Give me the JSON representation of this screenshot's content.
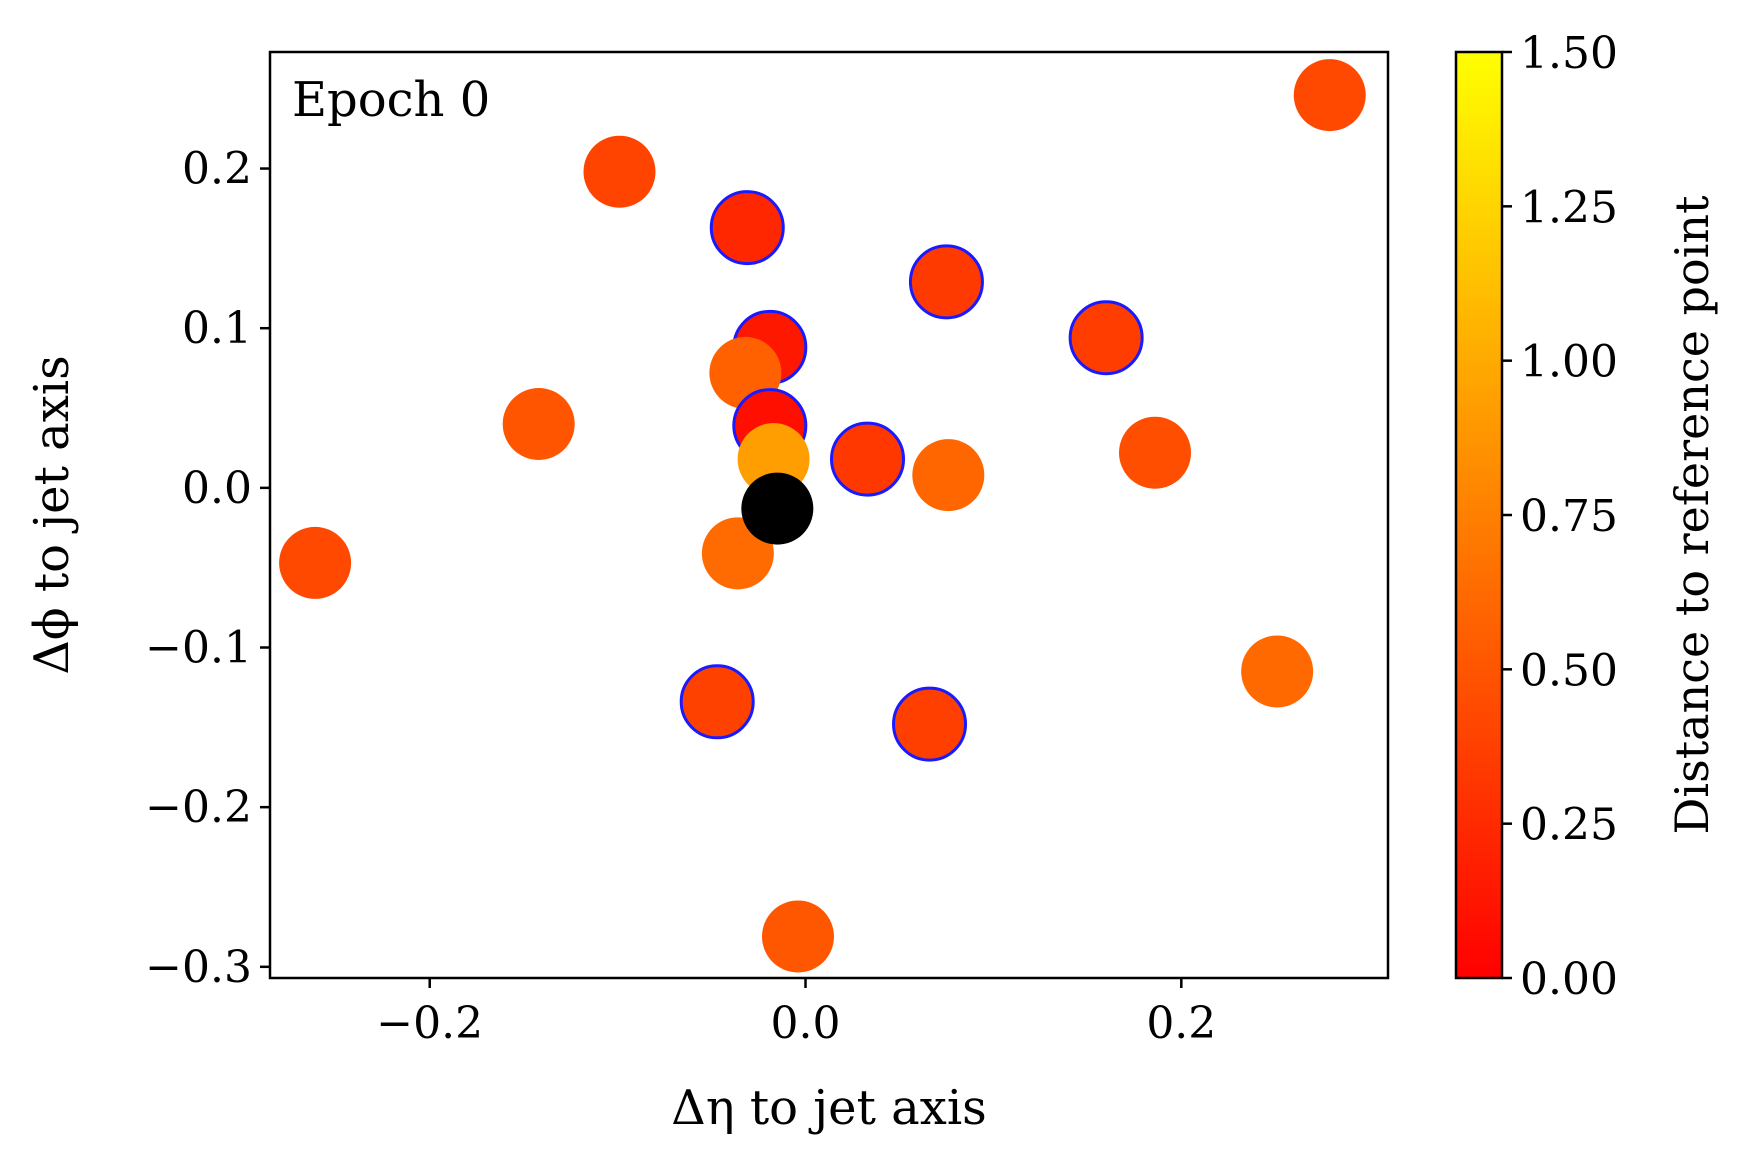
{
  "chart_data": {
    "type": "scatter",
    "annotation": "Epoch 0",
    "xlabel": "Δη to jet axis",
    "ylabel": "Δϕ to jet axis",
    "xlim": [
      -0.285,
      0.31
    ],
    "ylim": [
      -0.307,
      0.273
    ],
    "xticks": [
      -0.2,
      0.0,
      0.2
    ],
    "xtick_labels": [
      "−0.2",
      "0.0",
      "0.2"
    ],
    "yticks": [
      -0.3,
      -0.2,
      -0.1,
      0.0,
      0.1,
      0.2
    ],
    "ytick_labels": [
      "−0.3",
      "−0.2",
      "−0.1",
      "0.0",
      "0.1",
      "0.2"
    ],
    "grid": false,
    "colorbar": {
      "label": "Distance to reference point",
      "colormap": "autumn",
      "range": [
        0.0,
        1.5
      ],
      "ticks": [
        0.0,
        0.25,
        0.5,
        0.75,
        1.0,
        1.25,
        1.5
      ],
      "tick_labels": [
        "0.00",
        "0.25",
        "0.50",
        "0.75",
        "1.00",
        "1.25",
        "1.50"
      ]
    },
    "reference_point": {
      "x": -0.015,
      "y": -0.013,
      "color": "#000000"
    },
    "points": [
      {
        "x": 0.279,
        "y": 0.246,
        "dist": 0.43,
        "outlined": false
      },
      {
        "x": -0.099,
        "y": 0.198,
        "dist": 0.4,
        "outlined": false
      },
      {
        "x": -0.031,
        "y": 0.163,
        "dist": 0.23,
        "outlined": true
      },
      {
        "x": 0.075,
        "y": 0.129,
        "dist": 0.34,
        "outlined": true
      },
      {
        "x": 0.16,
        "y": 0.094,
        "dist": 0.36,
        "outlined": true
      },
      {
        "x": -0.019,
        "y": 0.088,
        "dist": 0.14,
        "outlined": true
      },
      {
        "x": -0.032,
        "y": 0.072,
        "dist": 0.57,
        "outlined": false
      },
      {
        "x": -0.142,
        "y": 0.04,
        "dist": 0.5,
        "outlined": false
      },
      {
        "x": -0.019,
        "y": 0.039,
        "dist": 0.09,
        "outlined": true
      },
      {
        "x": 0.186,
        "y": 0.022,
        "dist": 0.46,
        "outlined": false
      },
      {
        "x": -0.017,
        "y": 0.018,
        "dist": 0.93,
        "outlined": false
      },
      {
        "x": 0.033,
        "y": 0.018,
        "dist": 0.33,
        "outlined": true
      },
      {
        "x": 0.076,
        "y": 0.008,
        "dist": 0.6,
        "outlined": false
      },
      {
        "x": -0.036,
        "y": -0.041,
        "dist": 0.63,
        "outlined": false
      },
      {
        "x": -0.261,
        "y": -0.047,
        "dist": 0.43,
        "outlined": false
      },
      {
        "x": 0.251,
        "y": -0.115,
        "dist": 0.62,
        "outlined": false
      },
      {
        "x": -0.047,
        "y": -0.134,
        "dist": 0.38,
        "outlined": true
      },
      {
        "x": 0.066,
        "y": -0.148,
        "dist": 0.37,
        "outlined": true
      },
      {
        "x": -0.004,
        "y": -0.281,
        "dist": 0.51,
        "outlined": false
      }
    ],
    "outline_color": "#1a1aff"
  }
}
